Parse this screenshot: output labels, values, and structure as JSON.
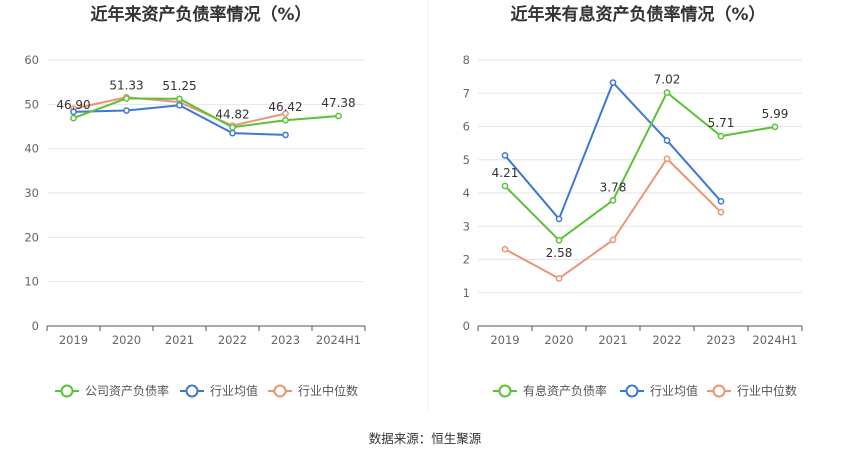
{
  "colors": {
    "company": "#5bc236",
    "industry_avg": "#3c78d8",
    "industry_median": "#ec9475",
    "axis": "#555555",
    "grid": "#e6e6e6",
    "divider": "#eeeeee"
  },
  "legend_icon": "circle-line-marker",
  "source_text": "数据来源：恒生聚源",
  "chart_data": [
    {
      "type": "line",
      "title": "近年来资产负债率情况（%）",
      "categories": [
        "2019",
        "2020",
        "2021",
        "2022",
        "2023",
        "2024H1"
      ],
      "ylim": [
        0,
        60
      ],
      "yticks": [
        "0",
        "10",
        "20",
        "30",
        "40",
        "50",
        "60"
      ],
      "grid": true,
      "legend_position": "bottom",
      "series": [
        {
          "name": "公司资产负债率",
          "key": "company",
          "values": [
            46.9,
            51.33,
            51.25,
            44.82,
            46.42,
            47.38
          ],
          "labels": [
            "46.90",
            "51.33",
            "51.25",
            "44.82",
            "46.42",
            "47.38"
          ]
        },
        {
          "name": "行业均值",
          "key": "industry_avg",
          "values": [
            48.3,
            48.6,
            49.8,
            43.5,
            43.1,
            null
          ]
        },
        {
          "name": "行业中位数",
          "key": "industry_median",
          "values": [
            49.0,
            51.6,
            50.5,
            45.2,
            47.9,
            null
          ]
        }
      ]
    },
    {
      "type": "line",
      "title": "近年来有息资产负债率情况（%）",
      "categories": [
        "2019",
        "2020",
        "2021",
        "2022",
        "2023",
        "2024H1"
      ],
      "ylim": [
        0,
        8
      ],
      "yticks": [
        "0",
        "1",
        "2",
        "3",
        "4",
        "5",
        "6",
        "7",
        "8"
      ],
      "grid": true,
      "legend_position": "bottom",
      "series": [
        {
          "name": "有息资产负债率",
          "key": "company",
          "values": [
            4.21,
            2.58,
            3.78,
            7.02,
            5.71,
            5.99
          ],
          "labels": [
            "4.21",
            "2.58",
            "3.78",
            "7.02",
            "5.71",
            "5.99"
          ]
        },
        {
          "name": "行业均值",
          "key": "industry_avg",
          "values": [
            5.13,
            3.22,
            7.32,
            5.58,
            3.75,
            null
          ]
        },
        {
          "name": "行业中位数",
          "key": "industry_median",
          "values": [
            2.31,
            1.43,
            2.59,
            5.03,
            3.42,
            null
          ]
        }
      ]
    }
  ]
}
